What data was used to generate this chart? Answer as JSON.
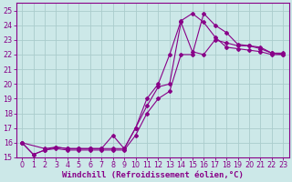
{
  "background_color": "#cce8e8",
  "grid_color": "#aacccc",
  "line_color": "#880088",
  "marker_color": "#880088",
  "xlabel": "Windchill (Refroidissement éolien,°C)",
  "xlabel_fontsize": 6.5,
  "tick_fontsize": 5.8,
  "xlim": [
    -0.5,
    23.5
  ],
  "ylim": [
    15,
    25.5
  ],
  "yticks": [
    15,
    16,
    17,
    18,
    19,
    20,
    21,
    22,
    23,
    24,
    25
  ],
  "xticks": [
    0,
    1,
    2,
    3,
    4,
    5,
    6,
    7,
    8,
    9,
    10,
    11,
    12,
    13,
    14,
    15,
    16,
    17,
    18,
    19,
    20,
    21,
    22,
    23
  ],
  "line1_x": [
    0,
    1,
    2,
    3,
    4,
    5,
    6,
    7,
    8,
    9,
    10,
    11,
    12,
    13,
    14,
    15,
    16,
    17,
    18,
    19,
    20,
    21,
    22,
    23
  ],
  "line1_y": [
    16.0,
    15.2,
    15.5,
    15.6,
    15.5,
    15.5,
    15.5,
    15.5,
    15.5,
    15.5,
    16.5,
    18.0,
    19.0,
    19.5,
    22.0,
    22.0,
    24.8,
    24.0,
    23.5,
    22.7,
    22.6,
    22.5,
    22.1,
    22.0
  ],
  "line2_x": [
    0,
    1,
    2,
    3,
    4,
    5,
    6,
    7,
    8,
    9,
    10,
    11,
    12,
    13,
    14,
    15,
    16,
    17,
    18,
    19,
    20,
    21,
    22,
    23
  ],
  "line2_y": [
    16.0,
    15.2,
    15.5,
    15.7,
    15.6,
    15.6,
    15.6,
    15.6,
    16.5,
    15.6,
    17.0,
    18.5,
    19.8,
    20.0,
    24.2,
    22.2,
    22.0,
    23.0,
    22.8,
    22.6,
    22.6,
    22.4,
    22.1,
    22.1
  ],
  "line3_x": [
    0,
    2,
    3,
    4,
    5,
    6,
    7,
    8,
    9,
    10,
    11,
    12,
    13,
    14,
    15,
    16,
    17,
    18,
    19,
    20,
    21,
    22,
    23
  ],
  "line3_y": [
    16.0,
    15.6,
    15.7,
    15.6,
    15.6,
    15.6,
    15.6,
    15.6,
    15.6,
    17.0,
    19.0,
    20.0,
    22.0,
    24.3,
    24.8,
    24.2,
    23.2,
    22.5,
    22.4,
    22.3,
    22.2,
    22.0,
    22.0
  ]
}
